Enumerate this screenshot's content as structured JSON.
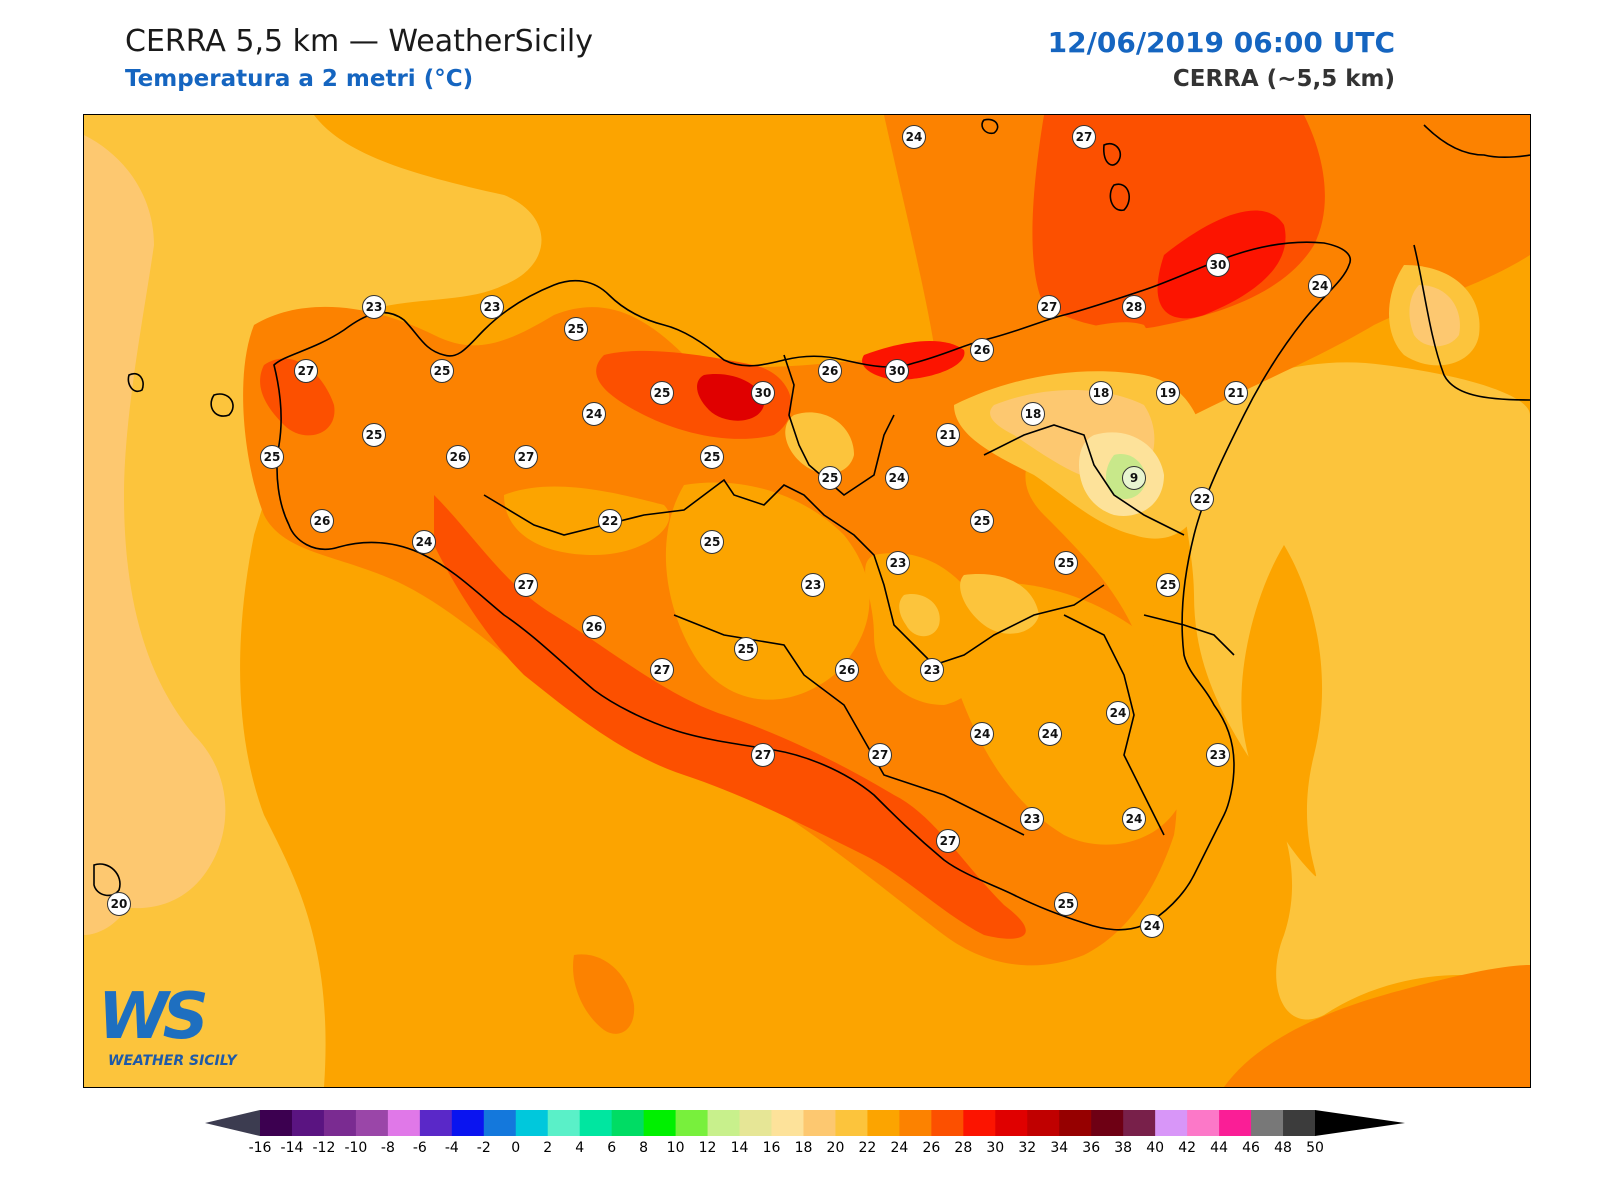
{
  "header": {
    "title": "CERRA 5,5 km — WeatherSicily",
    "subtitle": "Temperatura a 2 metri (°C)",
    "datetime": "12/06/2019 06:00 UTC",
    "model": "CERRA (~5,5 km)"
  },
  "logo": {
    "mark": "WS",
    "name": "WEATHER SICILY"
  },
  "colors": {
    "t20": "#fdc870",
    "t22": "#fcc43c",
    "t24": "#fca400",
    "t26": "#fc8200",
    "t28": "#fc5000",
    "t30": "#fc1400",
    "t32": "#e00000",
    "cool": "#fde29a",
    "green": "#c8e88a"
  },
  "stations": [
    {
      "v": "24"
    },
    {
      "v": "27"
    },
    {
      "v": "30"
    },
    {
      "v": "24"
    },
    {
      "v": "23"
    },
    {
      "v": "23"
    },
    {
      "v": "25"
    },
    {
      "v": "27"
    },
    {
      "v": "28"
    },
    {
      "v": "27"
    },
    {
      "v": "25"
    },
    {
      "v": "26"
    },
    {
      "v": "30"
    },
    {
      "v": "26"
    },
    {
      "v": "25"
    },
    {
      "v": "30"
    },
    {
      "v": "24"
    },
    {
      "v": "18"
    },
    {
      "v": "19"
    },
    {
      "v": "21"
    },
    {
      "v": "18"
    },
    {
      "v": "25"
    },
    {
      "v": "25"
    },
    {
      "v": "26"
    },
    {
      "v": "27"
    },
    {
      "v": "25"
    },
    {
      "v": "21"
    },
    {
      "v": "9"
    },
    {
      "v": "25"
    },
    {
      "v": "24"
    },
    {
      "v": "22"
    },
    {
      "v": "22"
    },
    {
      "v": "25"
    },
    {
      "v": "26"
    },
    {
      "v": "24"
    },
    {
      "v": "25"
    },
    {
      "v": "23"
    },
    {
      "v": "25"
    },
    {
      "v": "25"
    },
    {
      "v": "27"
    },
    {
      "v": "26"
    },
    {
      "v": "25"
    },
    {
      "v": "23"
    },
    {
      "v": "26"
    },
    {
      "v": "23"
    },
    {
      "v": "27"
    },
    {
      "v": "24"
    },
    {
      "v": "24"
    },
    {
      "v": "24"
    },
    {
      "v": "23"
    },
    {
      "v": "27"
    },
    {
      "v": "27"
    },
    {
      "v": "27"
    },
    {
      "v": "23"
    },
    {
      "v": "24"
    },
    {
      "v": "25"
    },
    {
      "v": "24"
    },
    {
      "v": "20"
    }
  ],
  "colorbar": {
    "colors": [
      "#3c0050",
      "#5a1481",
      "#7a2b91",
      "#9a46a8",
      "#e078e8",
      "#5a28c8",
      "#0a14f0",
      "#1478dc",
      "#00c8dc",
      "#5af0c8",
      "#00e6a0",
      "#00dc64",
      "#00f000",
      "#78f03c",
      "#c8f08c",
      "#e6e696",
      "#fde29a",
      "#fdc870",
      "#fcc43c",
      "#fca400",
      "#fc8200",
      "#fc5000",
      "#fc1400",
      "#e00000",
      "#c00000",
      "#960000",
      "#6e0014",
      "#78204a",
      "#d896f8",
      "#fc78c8",
      "#fa1e96",
      "#787878",
      "#3c3c3c"
    ],
    "under_color": "#3c3c50",
    "over_color": "#000000",
    "ticks": [
      "-16",
      "-14",
      "-12",
      "-10",
      "-8",
      "-6",
      "-4",
      "-2",
      "0",
      "2",
      "4",
      "6",
      "8",
      "10",
      "12",
      "14",
      "16",
      "18",
      "20",
      "22",
      "24",
      "26",
      "28",
      "30",
      "32",
      "34",
      "36",
      "38",
      "40",
      "42",
      "44",
      "46",
      "48",
      "50"
    ]
  }
}
